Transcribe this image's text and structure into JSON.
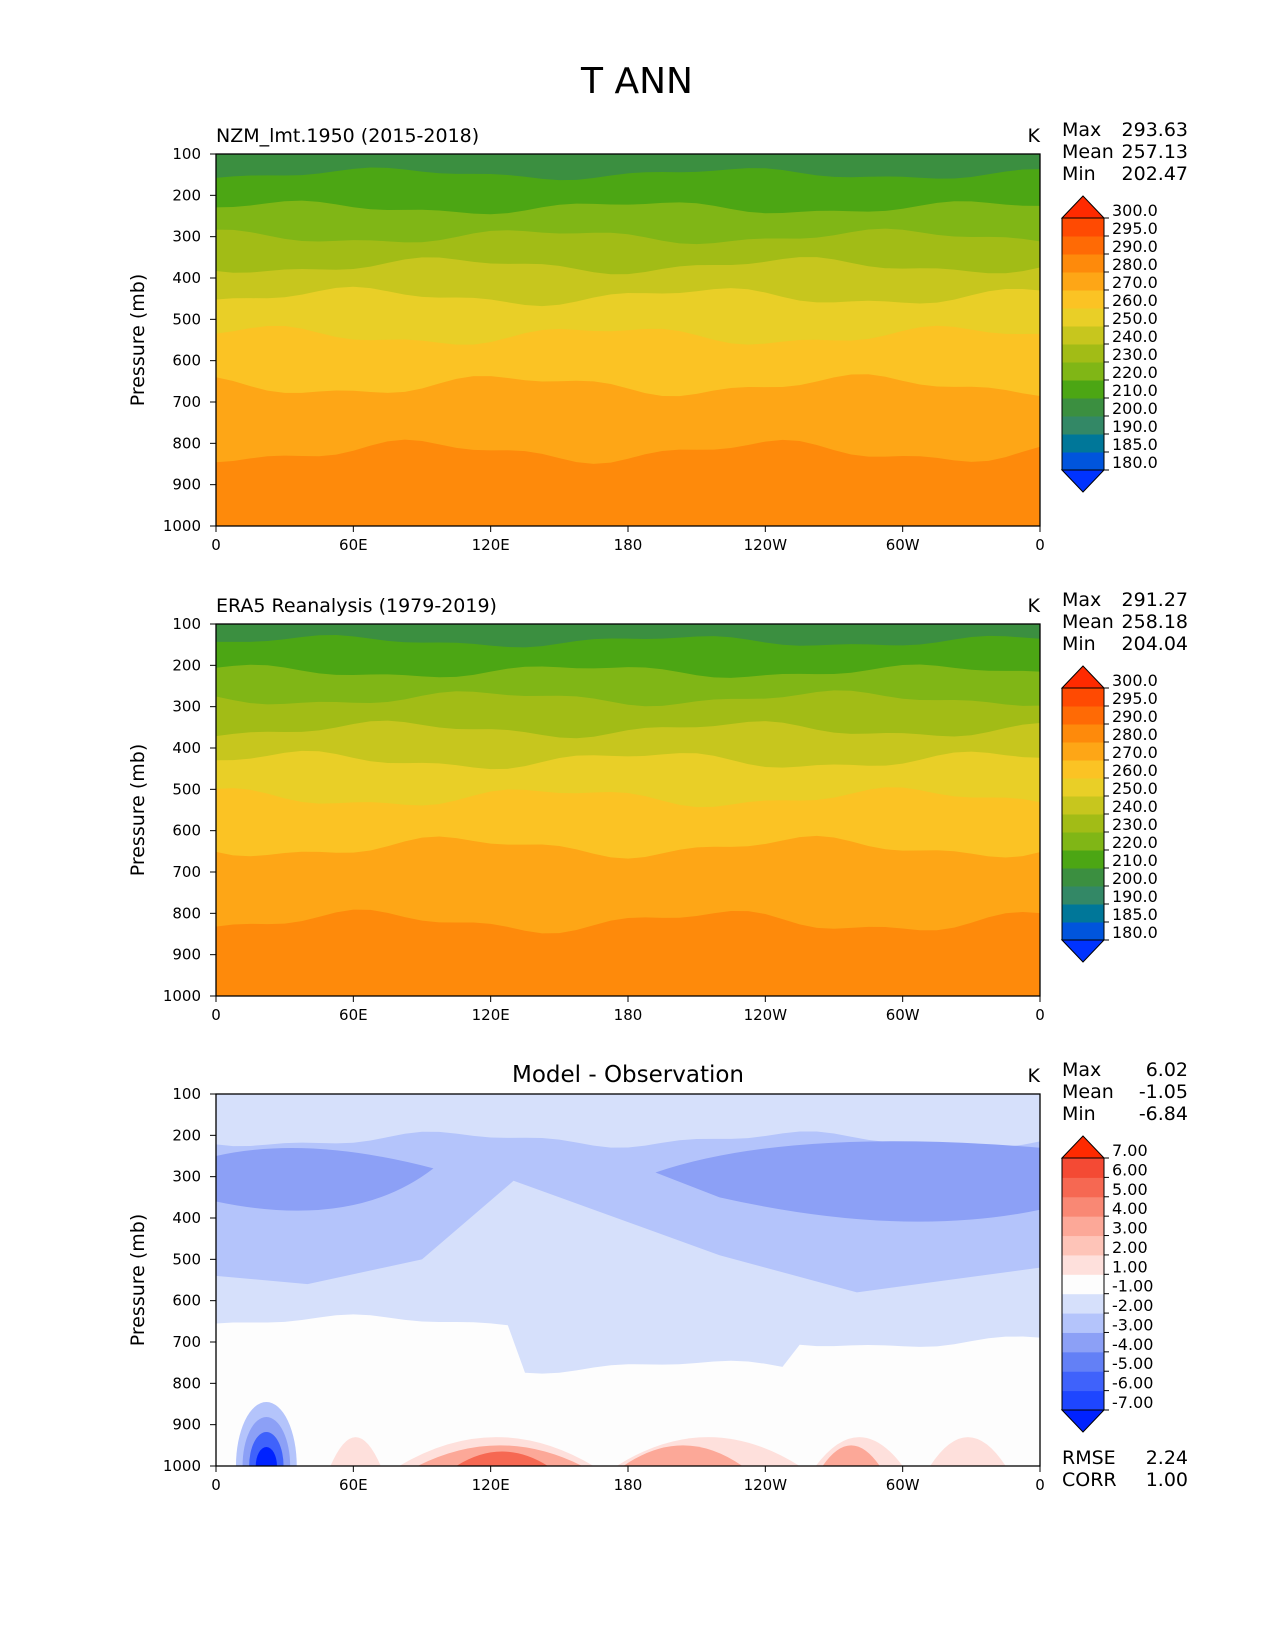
{
  "figure_title": "T ANN",
  "chart_data": [
    {
      "type": "heatmap",
      "plot_type": "zonal mean pressure-longitude contour",
      "title": "NZM_lmt.1950 (2015-2018)",
      "units": "K",
      "ylabel": "Pressure (mb)",
      "xlabel": "",
      "x": [
        0,
        60,
        120,
        180,
        240,
        300,
        360
      ],
      "x_tick_labels": [
        "0",
        "60E",
        "120E",
        "180",
        "120W",
        "60W",
        "0"
      ],
      "y_ticks": [
        100,
        200,
        300,
        400,
        500,
        600,
        700,
        800,
        900,
        1000
      ],
      "ylim": [
        1000,
        100
      ],
      "xlim": [
        0,
        360
      ],
      "stats": {
        "max_label": "Max",
        "max": "293.63",
        "mean_label": "Mean",
        "mean": "257.13",
        "min_label": "Min",
        "min": "202.47"
      },
      "colorbar": {
        "levels": [
          "180.0",
          "185.0",
          "190.0",
          "200.0",
          "210.0",
          "220.0",
          "230.0",
          "240.0",
          "250.0",
          "260.0",
          "270.0",
          "280.0",
          "290.0",
          "295.0",
          "300.0"
        ],
        "colors": [
          "#0033ff",
          "#0055dd",
          "#007799",
          "#338866",
          "#3b8f40",
          "#4ca614",
          "#80b616",
          "#a2bc16",
          "#c7c61e",
          "#e9cf27",
          "#fbc324",
          "#fea616",
          "#fe8a0b",
          "#ff6a05",
          "#ff4a02",
          "#ff2a00"
        ]
      },
      "contour_bands": [
        {
          "level": "210-220",
          "color": "#3b8f40",
          "pressure_top": 100,
          "pressure_bottom": 148
        },
        {
          "level": "220-230",
          "color": "#4ca614",
          "pressure_top": 148,
          "pressure_bottom": 230
        },
        {
          "level": "230-240",
          "color": "#80b616",
          "pressure_top": 230,
          "pressure_bottom": 300
        },
        {
          "level": "240-250",
          "color": "#a2bc16",
          "pressure_top": 300,
          "pressure_bottom": 370
        },
        {
          "level": "250-260",
          "color": "#c7c61e",
          "pressure_top": 370,
          "pressure_bottom": 445
        },
        {
          "level": "260-270",
          "color": "#e9cf27",
          "pressure_top": 445,
          "pressure_bottom": 540
        },
        {
          "level": "270-280",
          "color": "#fbc324",
          "pressure_top": 540,
          "pressure_bottom": 660
        },
        {
          "level": "280-290",
          "color": "#fea616",
          "pressure_top": 660,
          "pressure_bottom": 820
        },
        {
          "level": "290-295",
          "color": "#fe8a0b",
          "pressure_top": 820,
          "pressure_bottom": 1000
        }
      ]
    },
    {
      "type": "heatmap",
      "plot_type": "zonal mean pressure-longitude contour",
      "title": "ERA5 Reanalysis (1979-2019)",
      "units": "K",
      "ylabel": "Pressure (mb)",
      "xlabel": "",
      "x": [
        0,
        60,
        120,
        180,
        240,
        300,
        360
      ],
      "x_tick_labels": [
        "0",
        "60E",
        "120E",
        "180",
        "120W",
        "60W",
        "0"
      ],
      "y_ticks": [
        100,
        200,
        300,
        400,
        500,
        600,
        700,
        800,
        900,
        1000
      ],
      "ylim": [
        1000,
        100
      ],
      "xlim": [
        0,
        360
      ],
      "stats": {
        "max_label": "Max",
        "max": "291.27",
        "mean_label": "Mean",
        "mean": "258.18",
        "min_label": "Min",
        "min": "204.04"
      },
      "colorbar": {
        "levels": [
          "180.0",
          "185.0",
          "190.0",
          "200.0",
          "210.0",
          "220.0",
          "230.0",
          "240.0",
          "250.0",
          "260.0",
          "270.0",
          "280.0",
          "290.0",
          "295.0",
          "300.0"
        ],
        "colors": [
          "#0033ff",
          "#0055dd",
          "#007799",
          "#338866",
          "#3b8f40",
          "#4ca614",
          "#80b616",
          "#a2bc16",
          "#c7c61e",
          "#e9cf27",
          "#fbc324",
          "#fea616",
          "#fe8a0b",
          "#ff6a05",
          "#ff4a02",
          "#ff2a00"
        ]
      },
      "contour_bands": [
        {
          "level": "210-220",
          "color": "#3b8f40",
          "pressure_top": 100,
          "pressure_bottom": 142
        },
        {
          "level": "220-230",
          "color": "#4ca614",
          "pressure_top": 142,
          "pressure_bottom": 215
        },
        {
          "level": "230-240",
          "color": "#80b616",
          "pressure_top": 215,
          "pressure_bottom": 280
        },
        {
          "level": "240-250",
          "color": "#a2bc16",
          "pressure_top": 280,
          "pressure_bottom": 355
        },
        {
          "level": "250-260",
          "color": "#c7c61e",
          "pressure_top": 355,
          "pressure_bottom": 430
        },
        {
          "level": "260-270",
          "color": "#e9cf27",
          "pressure_top": 430,
          "pressure_bottom": 520
        },
        {
          "level": "270-280",
          "color": "#fbc324",
          "pressure_top": 520,
          "pressure_bottom": 640
        },
        {
          "level": "280-290",
          "color": "#fea616",
          "pressure_top": 640,
          "pressure_bottom": 820
        },
        {
          "level": "290-295",
          "color": "#fe8a0b",
          "pressure_top": 820,
          "pressure_bottom": 1000
        }
      ]
    },
    {
      "type": "heatmap",
      "plot_type": "zonal mean pressure-longitude difference contour",
      "title": "Model - Observation",
      "units": "K",
      "ylabel": "Pressure (mb)",
      "xlabel": "",
      "x": [
        0,
        60,
        120,
        180,
        240,
        300,
        360
      ],
      "x_tick_labels": [
        "0",
        "60E",
        "120E",
        "180",
        "120W",
        "60W",
        "0"
      ],
      "y_ticks": [
        100,
        200,
        300,
        400,
        500,
        600,
        700,
        800,
        900,
        1000
      ],
      "ylim": [
        1000,
        100
      ],
      "xlim": [
        0,
        360
      ],
      "stats": {
        "max_label": "Max",
        "max": "6.02",
        "mean_label": "Mean",
        "mean": "-1.05",
        "min_label": "Min",
        "min": "-6.84"
      },
      "metrics": {
        "rmse_label": "RMSE",
        "rmse": "2.24",
        "corr_label": "CORR",
        "corr": "1.00"
      },
      "colorbar": {
        "levels": [
          "-7.00",
          "-6.00",
          "-5.00",
          "-4.00",
          "-3.00",
          "-2.00",
          "-1.00",
          "1.00",
          "2.00",
          "3.00",
          "4.00",
          "5.00",
          "6.00",
          "7.00"
        ],
        "colors": [
          "#0022ff",
          "#1e46ff",
          "#3f62fb",
          "#6380f6",
          "#8ca0f6",
          "#b4c4fb",
          "#d6e0fb",
          "#fdfdfd",
          "#fee0dc",
          "#fec4b8",
          "#fca898",
          "#f98874",
          "#f66852",
          "#f44a34",
          "#ff2a00"
        ]
      },
      "contour_bands": [
        {
          "level": "-2 to -1",
          "color": "#d6e0fb",
          "pressure_top": 100,
          "pressure_bottom": 200
        },
        {
          "level": "-3 to -2",
          "color": "#b4c4fb",
          "pressure_top": 200,
          "pressure_bottom": 540
        },
        {
          "level": "-4 to -3",
          "color": "#8ca0f6",
          "pressure_top": 230,
          "pressure_bottom": 390
        },
        {
          "level": "-1 to 1",
          "color": "#fdfdfd",
          "pressure_top": 690,
          "pressure_bottom": 1000
        },
        {
          "level": "1 to 2",
          "color": "#fee0dc",
          "pressure_top": 880,
          "pressure_bottom": 1000
        },
        {
          "level": "3 to 5",
          "color": "#fca898",
          "pressure_top": 920,
          "pressure_bottom": 1000
        },
        {
          "level": "-7 to -4",
          "color": "#3f62fb",
          "pressure_top": 900,
          "pressure_bottom": 1000
        }
      ]
    }
  ]
}
